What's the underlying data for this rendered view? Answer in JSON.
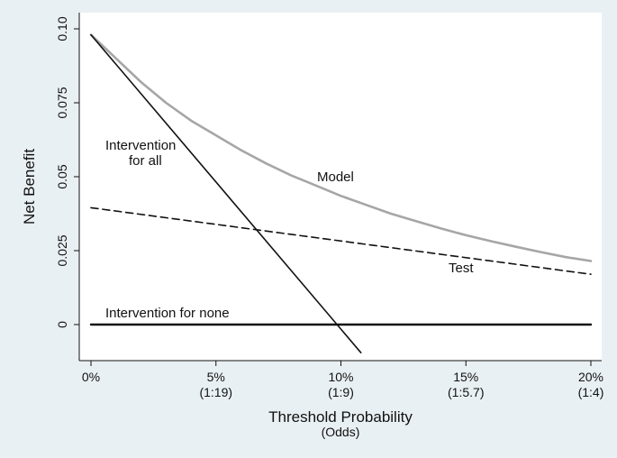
{
  "chart_data": {
    "type": "line",
    "title": "",
    "xlabel": "Threshold Probability",
    "xlabel_sub": "(Odds)",
    "ylabel": "Net Benefit",
    "xlim": [
      0,
      20
    ],
    "ylim": [
      -0.01,
      0.1
    ],
    "grid": false,
    "legend": "none",
    "x_ticks": [
      {
        "value": 0,
        "label": "0%",
        "sub": ""
      },
      {
        "value": 5,
        "label": "5%",
        "sub": "(1:19)"
      },
      {
        "value": 10,
        "label": "10%",
        "sub": "(1:9)"
      },
      {
        "value": 15,
        "label": "15%",
        "sub": "(1:5.7)"
      },
      {
        "value": 20,
        "label": "20%",
        "sub": "(1:4)"
      }
    ],
    "y_ticks": [
      {
        "value": 0,
        "label": "0"
      },
      {
        "value": 0.025,
        "label": "0.025"
      },
      {
        "value": 0.05,
        "label": "0.05"
      },
      {
        "value": 0.075,
        "label": "0.075"
      },
      {
        "value": 0.1,
        "label": "0.10"
      }
    ],
    "series": [
      {
        "key": "model",
        "color": "#a6a6a6",
        "x": [
          0,
          1,
          2,
          3,
          4,
          5,
          6,
          7,
          8,
          9,
          10,
          11,
          12,
          13,
          14,
          15,
          16,
          17,
          18,
          19,
          20
        ],
        "values": [
          0.098,
          0.09,
          0.082,
          0.075,
          0.069,
          0.064,
          0.059,
          0.0545,
          0.0505,
          0.047,
          0.0435,
          0.0405,
          0.0375,
          0.035,
          0.0325,
          0.0302,
          0.0282,
          0.0263,
          0.0245,
          0.0228,
          0.0215
        ]
      },
      {
        "key": "test",
        "color": "#111111",
        "dash": true,
        "x": [
          0,
          20
        ],
        "values": [
          0.0395,
          0.017
        ]
      },
      {
        "key": "intervention-for-all",
        "color": "#111111",
        "x": [
          0,
          10.8
        ],
        "values": [
          0.098,
          -0.0095
        ]
      },
      {
        "key": "intervention-for-none",
        "color": "#111111",
        "bold": true,
        "x": [
          0,
          20
        ],
        "values": [
          0,
          0
        ]
      }
    ],
    "annotations": {
      "model": "Model",
      "test": "Test",
      "all_line1": "Intervention",
      "all_line2": "for all",
      "none": "Intervention for none"
    }
  }
}
